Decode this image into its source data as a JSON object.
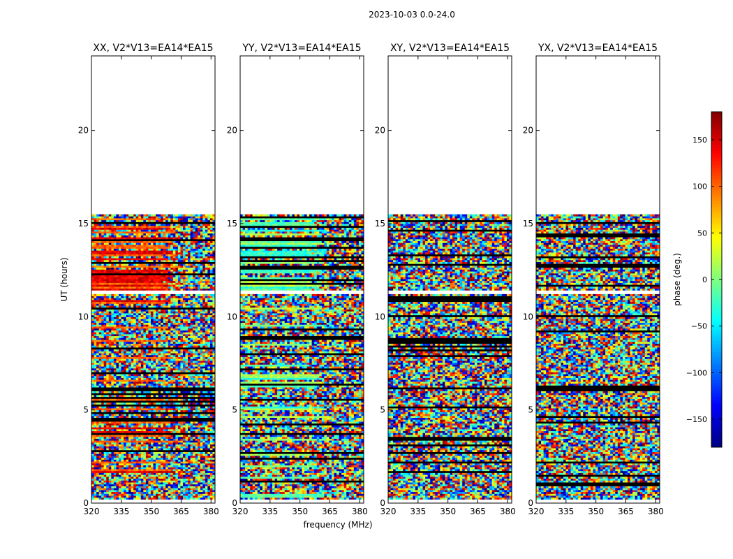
{
  "figure_title": "2023-10-03 0.0-24.0",
  "chart_data": {
    "type": "heatmap",
    "title": "2023-10-03 0.0-24.0",
    "xlabel": "frequency (MHz)",
    "ylabel": "UT (hours)",
    "colorbar_label": "phase (deg.)",
    "xlim": [
      320,
      382
    ],
    "ylim": [
      0,
      24
    ],
    "clim": [
      -180,
      180
    ],
    "x_ticks": [
      "320",
      "335",
      "350",
      "365",
      "380"
    ],
    "y_ticks": [
      "0",
      "5",
      "10",
      "15",
      "20"
    ],
    "colorbar_ticks": [
      "150",
      "100",
      "50",
      "0",
      "−50",
      "−100",
      "−150"
    ],
    "colorbar_tick_values": [
      150,
      100,
      50,
      0,
      -50,
      -100,
      -150
    ],
    "data_ut_range": [
      0.2,
      15.5
    ],
    "gap_ut_range": [
      11.2,
      11.4
    ],
    "panels": [
      {
        "title": "XX, V2*V13=EA14*EA15",
        "product": "XX"
      },
      {
        "title": "YY, V2*V13=EA14*EA15",
        "product": "YY"
      },
      {
        "title": "XY, V2*V13=EA14*EA15",
        "product": "XY"
      },
      {
        "title": "YX, V2*V13=EA14*EA15",
        "product": "YX"
      }
    ]
  }
}
